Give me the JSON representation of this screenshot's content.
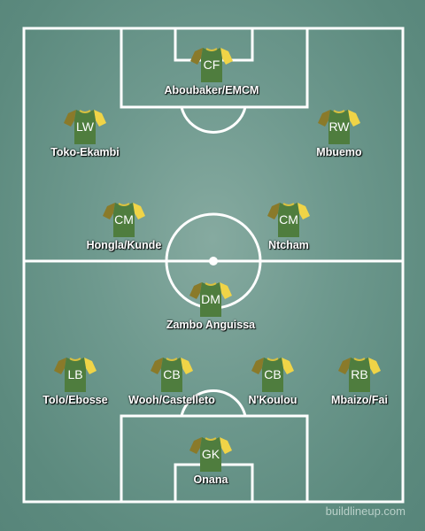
{
  "kit": {
    "body_color": "#4f7d3e",
    "sleeve_color": "#f0d447",
    "left_sleeve_color": "#8a7a2a",
    "collar_color": "#d8c040"
  },
  "players": {
    "cf": {
      "pos": "CF",
      "name": "Aboubaker/EMCM"
    },
    "lw": {
      "pos": "LW",
      "name": "Toko-Ekambi"
    },
    "rw": {
      "pos": "RW",
      "name": "Mbuemo"
    },
    "cml": {
      "pos": "CM",
      "name": "Hongla/Kunde"
    },
    "cmr": {
      "pos": "CM",
      "name": "Ntcham"
    },
    "dm": {
      "pos": "DM",
      "name": "Zambo Anguissa"
    },
    "lb": {
      "pos": "LB",
      "name": "Tolo/Ebosse"
    },
    "cbl": {
      "pos": "CB",
      "name": "Wooh/Castelleto"
    },
    "cbr": {
      "pos": "CB",
      "name": "N'Koulou"
    },
    "rb": {
      "pos": "RB",
      "name": "Mbaizo/Fai"
    },
    "gk": {
      "pos": "GK",
      "name": "Onana"
    }
  },
  "watermark": "buildlineup.com"
}
